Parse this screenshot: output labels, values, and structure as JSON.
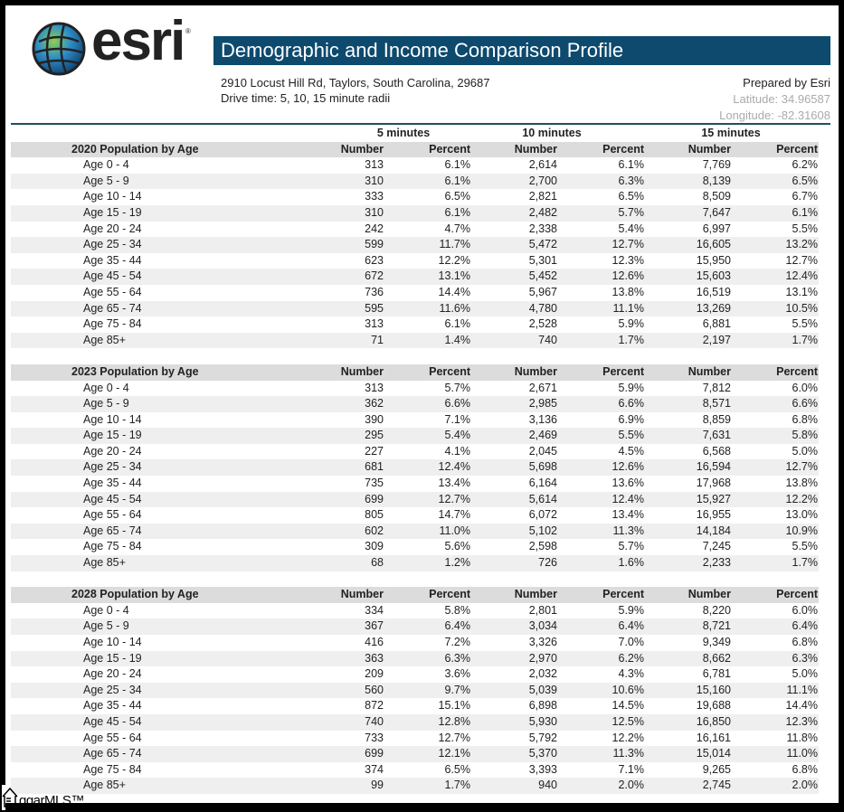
{
  "header": {
    "logo_text": "esri",
    "title": "Demographic and Income Comparison Profile",
    "address": "2910 Locust Hill Rd, Taylors, South Carolina, 29687",
    "drive_time": "Drive time: 5, 10, 15 minute radii",
    "prepared_by": "Prepared by Esri",
    "latitude": "Latitude: 34.96587",
    "longitude": "Longitude: -82.31608",
    "title_bar_color": "#0d4a6e"
  },
  "radii": [
    "5 minutes",
    "10 minutes",
    "15 minutes"
  ],
  "columns": [
    "Number",
    "Percent",
    "Number",
    "Percent",
    "Number",
    "Percent"
  ],
  "sections": [
    {
      "title": "2020 Population by Age",
      "rows": [
        [
          "Age 0 - 4",
          "313",
          "6.1%",
          "2,614",
          "6.1%",
          "7,769",
          "6.2%"
        ],
        [
          "Age 5 - 9",
          "310",
          "6.1%",
          "2,700",
          "6.3%",
          "8,139",
          "6.5%"
        ],
        [
          "Age 10 - 14",
          "333",
          "6.5%",
          "2,821",
          "6.5%",
          "8,509",
          "6.7%"
        ],
        [
          "Age 15 - 19",
          "310",
          "6.1%",
          "2,482",
          "5.7%",
          "7,647",
          "6.1%"
        ],
        [
          "Age 20 - 24",
          "242",
          "4.7%",
          "2,338",
          "5.4%",
          "6,997",
          "5.5%"
        ],
        [
          "Age 25 - 34",
          "599",
          "11.7%",
          "5,472",
          "12.7%",
          "16,605",
          "13.2%"
        ],
        [
          "Age 35 - 44",
          "623",
          "12.2%",
          "5,301",
          "12.3%",
          "15,950",
          "12.7%"
        ],
        [
          "Age 45 - 54",
          "672",
          "13.1%",
          "5,452",
          "12.6%",
          "15,603",
          "12.4%"
        ],
        [
          "Age 55 - 64",
          "736",
          "14.4%",
          "5,967",
          "13.8%",
          "16,519",
          "13.1%"
        ],
        [
          "Age 65 - 74",
          "595",
          "11.6%",
          "4,780",
          "11.1%",
          "13,269",
          "10.5%"
        ],
        [
          "Age 75 - 84",
          "313",
          "6.1%",
          "2,528",
          "5.9%",
          "6,881",
          "5.5%"
        ],
        [
          "Age 85+",
          "71",
          "1.4%",
          "740",
          "1.7%",
          "2,197",
          "1.7%"
        ]
      ]
    },
    {
      "title": "2023 Population by Age",
      "rows": [
        [
          "Age 0 - 4",
          "313",
          "5.7%",
          "2,671",
          "5.9%",
          "7,812",
          "6.0%"
        ],
        [
          "Age 5 - 9",
          "362",
          "6.6%",
          "2,985",
          "6.6%",
          "8,571",
          "6.6%"
        ],
        [
          "Age 10 - 14",
          "390",
          "7.1%",
          "3,136",
          "6.9%",
          "8,859",
          "6.8%"
        ],
        [
          "Age 15 - 19",
          "295",
          "5.4%",
          "2,469",
          "5.5%",
          "7,631",
          "5.8%"
        ],
        [
          "Age 20 - 24",
          "227",
          "4.1%",
          "2,045",
          "4.5%",
          "6,568",
          "5.0%"
        ],
        [
          "Age 25 - 34",
          "681",
          "12.4%",
          "5,698",
          "12.6%",
          "16,594",
          "12.7%"
        ],
        [
          "Age 35 - 44",
          "735",
          "13.4%",
          "6,164",
          "13.6%",
          "17,968",
          "13.8%"
        ],
        [
          "Age 45 - 54",
          "699",
          "12.7%",
          "5,614",
          "12.4%",
          "15,927",
          "12.2%"
        ],
        [
          "Age 55 - 64",
          "805",
          "14.7%",
          "6,072",
          "13.4%",
          "16,955",
          "13.0%"
        ],
        [
          "Age 65 - 74",
          "602",
          "11.0%",
          "5,102",
          "11.3%",
          "14,184",
          "10.9%"
        ],
        [
          "Age 75 - 84",
          "309",
          "5.6%",
          "2,598",
          "5.7%",
          "7,245",
          "5.5%"
        ],
        [
          "Age 85+",
          "68",
          "1.2%",
          "726",
          "1.6%",
          "2,233",
          "1.7%"
        ]
      ]
    },
    {
      "title": "2028 Population by Age",
      "rows": [
        [
          "Age 0 - 4",
          "334",
          "5.8%",
          "2,801",
          "5.9%",
          "8,220",
          "6.0%"
        ],
        [
          "Age 5 - 9",
          "367",
          "6.4%",
          "3,034",
          "6.4%",
          "8,721",
          "6.4%"
        ],
        [
          "Age 10 - 14",
          "416",
          "7.2%",
          "3,326",
          "7.0%",
          "9,349",
          "6.8%"
        ],
        [
          "Age 15 - 19",
          "363",
          "6.3%",
          "2,970",
          "6.2%",
          "8,662",
          "6.3%"
        ],
        [
          "Age 20 - 24",
          "209",
          "3.6%",
          "2,032",
          "4.3%",
          "6,781",
          "5.0%"
        ],
        [
          "Age 25 - 34",
          "560",
          "9.7%",
          "5,039",
          "10.6%",
          "15,160",
          "11.1%"
        ],
        [
          "Age 35 - 44",
          "872",
          "15.1%",
          "6,898",
          "14.5%",
          "19,688",
          "14.4%"
        ],
        [
          "Age 45 - 54",
          "740",
          "12.8%",
          "5,930",
          "12.5%",
          "16,850",
          "12.3%"
        ],
        [
          "Age 55 - 64",
          "733",
          "12.7%",
          "5,792",
          "12.2%",
          "16,161",
          "11.8%"
        ],
        [
          "Age 65 - 74",
          "699",
          "12.1%",
          "5,370",
          "11.3%",
          "15,014",
          "11.0%"
        ],
        [
          "Age 75 - 84",
          "374",
          "6.5%",
          "3,393",
          "7.1%",
          "9,265",
          "6.8%"
        ],
        [
          "Age 85+",
          "99",
          "1.7%",
          "940",
          "2.0%",
          "2,745",
          "2.0%"
        ]
      ]
    }
  ],
  "watermark": {
    "text": "ggarMLS™",
    "icon": "house-icon"
  }
}
